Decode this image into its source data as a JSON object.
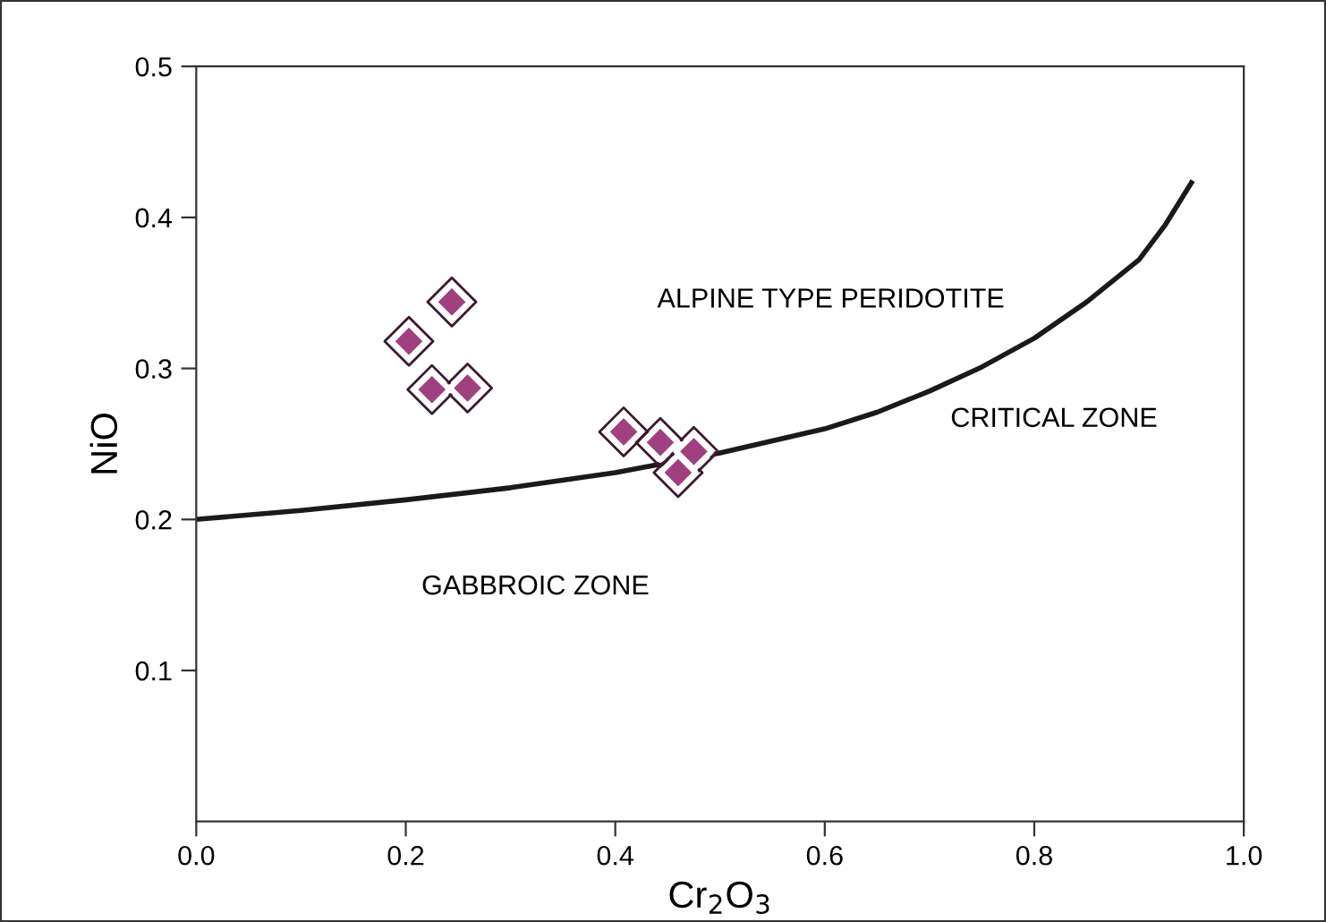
{
  "chart_data": {
    "type": "scatter",
    "xlabel": "Cr$_{2}$O$_{3}$",
    "ylabel": "NiO",
    "xlim": [
      0,
      1
    ],
    "ylim": [
      0,
      0.5
    ],
    "xticks": [
      {
        "value": 0,
        "label": "0.0"
      },
      0.2,
      0.4,
      0.6,
      0.8,
      {
        "value": 1,
        "label": "1.0"
      }
    ],
    "yticks": [
      0.1,
      0.2,
      0.3,
      0.4,
      0.5
    ],
    "grid": false,
    "legend": false,
    "marker": "diamond",
    "annotations": [
      "ALPINE TYPE PERIDOTITE",
      "CRITICAL ZONE",
      "GABBROIC ZONE"
    ],
    "series": [
      {
        "color": "#a0407f",
        "x": [
          0.203,
          0.244,
          0.225,
          0.259,
          0.408,
          0.443,
          0.475,
          0.46
        ],
        "values": [
          0.318,
          0.344,
          0.286,
          0.287,
          0.258,
          0.251,
          0.245,
          0.231
        ]
      },
      {
        "type": "line",
        "color": "#1a1a1a",
        "marker": "none",
        "line_style": "solid",
        "x": [
          0,
          0.1,
          0.2,
          0.3,
          0.4,
          0.5,
          0.6,
          0.65,
          0.7,
          0.75,
          0.8,
          0.85,
          0.9,
          0.925,
          0.95
        ],
        "values": [
          0.2,
          0.206,
          0.213,
          0.221,
          0.231,
          0.244,
          0.26,
          0.271,
          0.285,
          0.301,
          0.32,
          0.344,
          0.372,
          0.395,
          0.423
        ]
      }
    ]
  }
}
